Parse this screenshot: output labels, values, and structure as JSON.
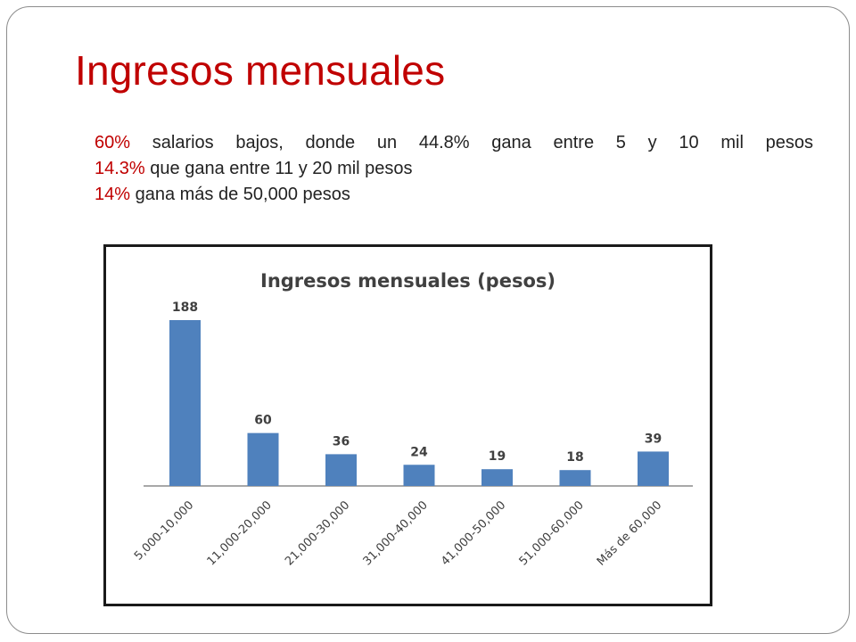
{
  "slide": {
    "title": "Ingresos mensuales",
    "bullets": [
      {
        "highlight": "60%",
        "text": " salarios bajos, donde un 44.8% gana entre 5 y 10 mil pesos"
      },
      {
        "highlight": "14.3%",
        "text": " que gana entre 11 y 20 mil pesos"
      },
      {
        "highlight": "14%",
        "text": " gana más de 50,000 pesos"
      }
    ]
  },
  "chart_data": {
    "type": "bar",
    "title": "Ingresos mensuales (pesos)",
    "categories": [
      "5,000-10,000",
      "11,000-20,000",
      "21,000-30,000",
      "31,000-40,000",
      "41,000-50,000",
      "51,000-60,000",
      "Más de 60,000"
    ],
    "values": [
      188,
      60,
      36,
      24,
      19,
      18,
      39
    ],
    "data_labels": [
      "188",
      "60",
      "36",
      "24",
      "19",
      "18",
      "39"
    ],
    "xlabel": "",
    "ylabel": "",
    "ylim": [
      0,
      188
    ],
    "grid": false,
    "legend": "none",
    "bar_color": "#4f81bd"
  }
}
